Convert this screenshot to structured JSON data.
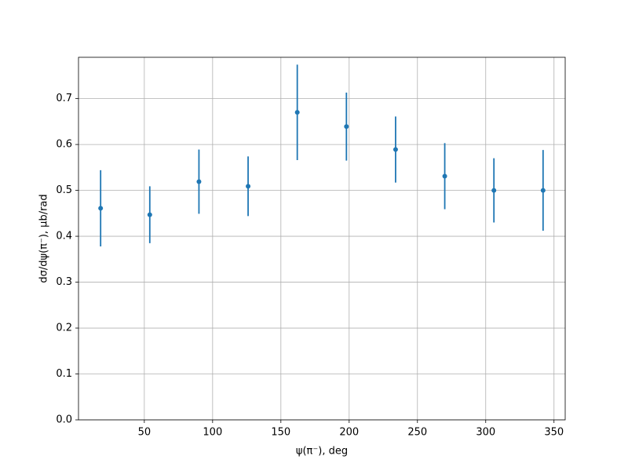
{
  "chart_data": {
    "type": "errorbar",
    "xlabel": "ψ(π⁻), deg",
    "ylabel": "dσ/dψ(π⁻), μb/rad",
    "x": [
      18,
      54,
      90,
      126,
      162,
      198,
      234,
      270,
      306,
      342
    ],
    "values": [
      0.461,
      0.447,
      0.519,
      0.509,
      0.67,
      0.639,
      0.589,
      0.531,
      0.5,
      0.5
    ],
    "errors": [
      0.083,
      0.062,
      0.07,
      0.065,
      0.104,
      0.074,
      0.072,
      0.072,
      0.07,
      0.088
    ],
    "color": "#1f77b4",
    "xlim": [
      1.8,
      358.2
    ],
    "ylim": [
      0,
      0.79
    ],
    "xticks": [
      50,
      100,
      150,
      200,
      250,
      300,
      350
    ],
    "yticks": [
      {
        "value": 0,
        "label": "0.0"
      },
      0.1,
      0.2,
      0.3,
      0.4,
      0.5,
      0.6,
      0.7
    ],
    "grid": true
  }
}
